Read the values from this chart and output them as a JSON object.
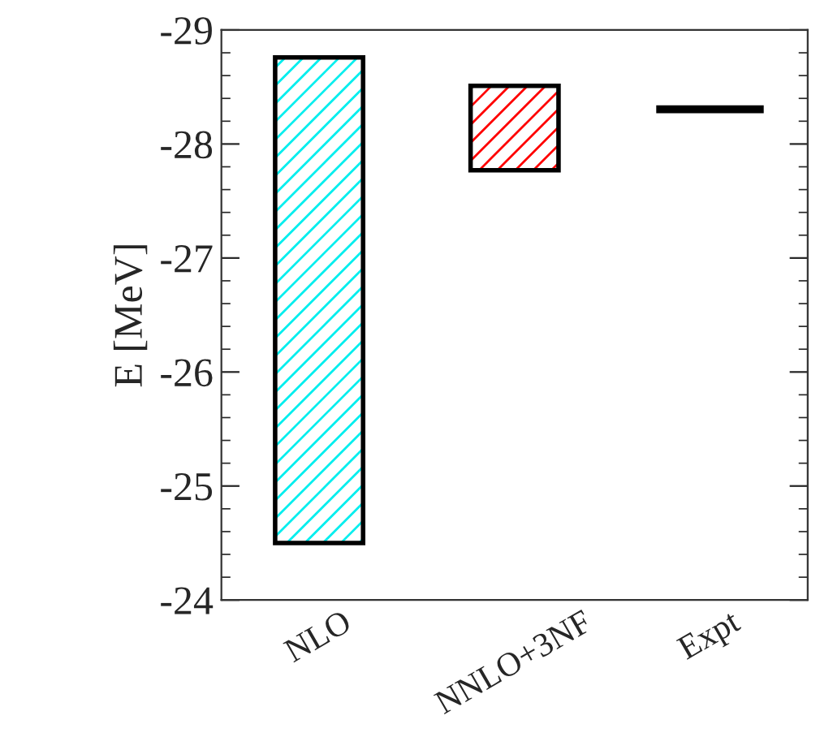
{
  "chart_data": {
    "type": "bar",
    "ylabel": "E [MeV]",
    "categories": [
      "NLO",
      "NNLO+3NF",
      "Expt"
    ],
    "base": [
      -24.5,
      -27.77,
      -28.27
    ],
    "values": [
      -4.26,
      -0.74,
      -0.07
    ],
    "colors": [
      "#00eeee",
      "#ff0000",
      "#000000"
    ],
    "ylim": [
      -24,
      -29
    ],
    "yticks": [
      -24,
      -25,
      -26,
      -27,
      -28,
      -29
    ]
  }
}
